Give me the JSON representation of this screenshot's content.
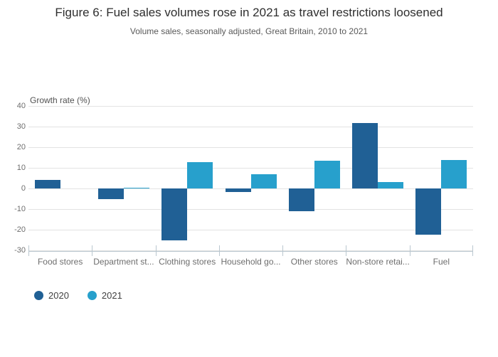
{
  "chart_data": {
    "type": "bar",
    "title": "Figure 6: Fuel sales volumes rose in 2021 as travel restrictions loosened",
    "subtitle": "Volume sales, seasonally adjusted, Great Britain, 2010 to 2021",
    "ylabel": "Growth rate (%)",
    "xlabel": "",
    "ylim": [
      -30,
      40
    ],
    "ytick_step": 10,
    "ytick_labels": [
      "40",
      "30",
      "20",
      "10",
      "0",
      "-10",
      "-20",
      "-30"
    ],
    "grid": true,
    "legend_position": "bottom-left",
    "categories": [
      "Food stores",
      "Department st...",
      "Clothing stores",
      "Household go...",
      "Other stores",
      "Non-store retai...",
      "Fuel"
    ],
    "series": [
      {
        "name": "2020",
        "color": "#206095",
        "values": [
          4.3,
          -5.2,
          -25.2,
          -1.7,
          -11.1,
          31.7,
          -22.3
        ]
      },
      {
        "name": "2021",
        "color": "#27a0cc",
        "values": [
          0.0,
          0.5,
          12.9,
          7.0,
          13.4,
          3.1,
          13.9
        ]
      }
    ]
  },
  "colors": {
    "gridline": "#e3e3e3",
    "axis_line": "#bac7cf",
    "title_text": "#2e2e2e",
    "subtitle_text": "#595959",
    "tick_text": "#6e6e6e"
  }
}
